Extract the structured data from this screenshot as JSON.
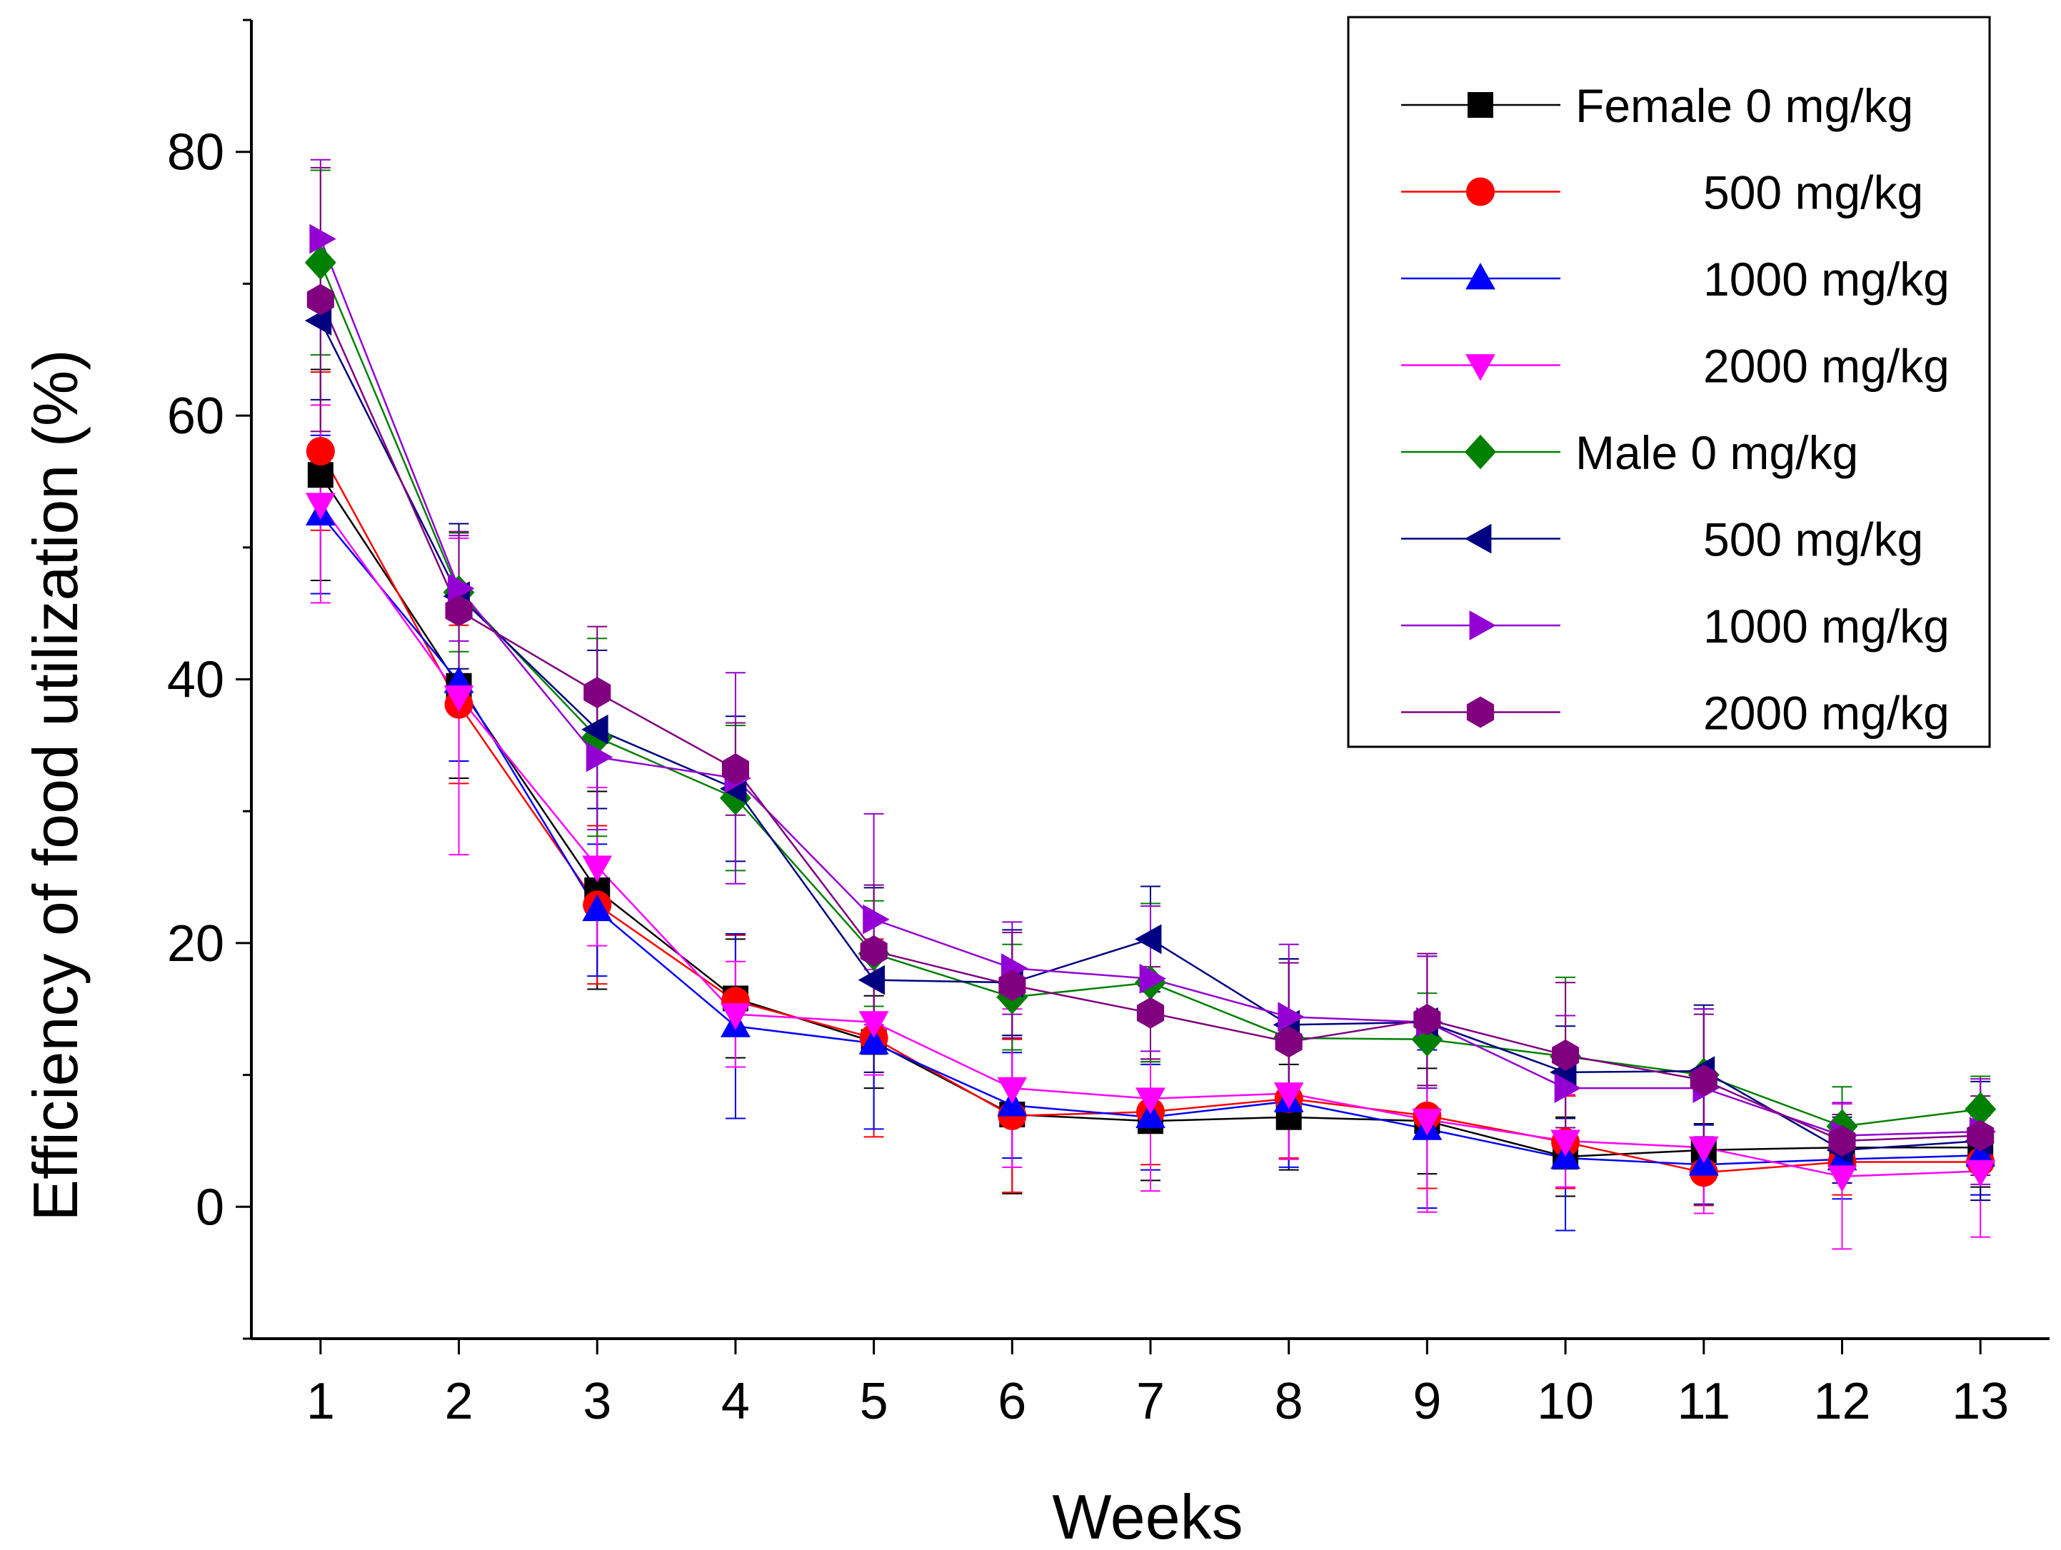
{
  "chart_data": {
    "type": "line",
    "title": "",
    "xlabel": "Weeks",
    "ylabel": "Efficiency of food utilization (%)",
    "x": [
      1,
      2,
      3,
      4,
      5,
      6,
      7,
      8,
      9,
      10,
      11,
      12,
      13
    ],
    "xlim": [
      0.5,
      13.5
    ],
    "ylim": [
      -10,
      90
    ],
    "yticks": [
      0,
      20,
      40,
      60,
      80
    ],
    "legend_position": "top-right",
    "series": [
      {
        "name": "Female 0 mg/kg",
        "legend_label": "Female 0 mg/kg",
        "color": "#000000",
        "marker": "square",
        "values": [
          55.5,
          39.5,
          24,
          15.8,
          12.5,
          7,
          6.5,
          6.8,
          6.5,
          3.8,
          4.3,
          4.5,
          4.5
        ],
        "errors": [
          8,
          7,
          7.5,
          4.5,
          3.5,
          6,
          4.5,
          4,
          4,
          3,
          2,
          2,
          3
        ]
      },
      {
        "name": "Female 500 mg/kg",
        "legend_label": "500 mg/kg",
        "color": "#ff0000",
        "marker": "circle",
        "values": [
          57.3,
          38.1,
          22.9,
          15.6,
          12.8,
          6.9,
          7.2,
          8.2,
          6.9,
          4.9,
          2.6,
          3.4,
          3.4
        ],
        "errors": [
          6,
          6,
          6,
          5,
          7.5,
          5.8,
          4,
          4.5,
          5.5,
          3.5,
          2.5,
          2.5,
          2.5
        ]
      },
      {
        "name": "Female 1000 mg/kg",
        "legend_label": "1000 mg/kg",
        "color": "#0000ff",
        "marker": "triangle-up",
        "values": [
          52.5,
          39.8,
          22.5,
          13.7,
          12.4,
          7.7,
          6.8,
          8,
          5.9,
          3.7,
          3.2,
          3.6,
          3.9
        ],
        "errors": [
          6,
          6,
          5,
          7,
          6.5,
          4,
          4,
          5,
          6,
          5.5,
          3,
          3,
          3
        ]
      },
      {
        "name": "Female 2000 mg/kg",
        "legend_label": "2000 mg/kg",
        "color": "#ff00ff",
        "marker": "triangle-down",
        "values": [
          53.3,
          38.7,
          25.8,
          14.6,
          14,
          9,
          8.2,
          8.6,
          6.6,
          5,
          4.5,
          2.3,
          2.7
        ],
        "errors": [
          7.5,
          12,
          6,
          4,
          4,
          6,
          7,
          5,
          7,
          3.5,
          5,
          5.5,
          5
        ]
      },
      {
        "name": "Male 0 mg/kg",
        "legend_label": "Male 0 mg/kg",
        "color": "#008000",
        "marker": "diamond",
        "values": [
          71.6,
          46.6,
          35.6,
          31,
          19.2,
          15.9,
          17,
          12.8,
          12.7,
          11.4,
          10,
          6.1,
          7.4
        ],
        "errors": [
          7,
          4.5,
          7.5,
          5.5,
          4,
          4,
          6,
          6,
          3.5,
          6,
          5,
          3,
          2.5
        ]
      },
      {
        "name": "Male 500 mg/kg",
        "legend_label": "500 mg/kg",
        "color": "#000080",
        "marker": "triangle-left",
        "values": [
          67.2,
          46.3,
          36.2,
          31.7,
          17.2,
          17,
          20.3,
          13.8,
          14,
          10.2,
          10.3,
          4.3,
          5
        ],
        "errors": [
          6,
          5.5,
          6,
          5.5,
          7,
          4,
          4,
          5,
          5,
          3.5,
          5,
          2.5,
          4.5
        ]
      },
      {
        "name": "Male 1000 mg/kg",
        "legend_label": "1000 mg/kg",
        "color": "#9400d3",
        "marker": "triangle-right",
        "values": [
          73.4,
          46.9,
          34.1,
          32.5,
          21.8,
          18.1,
          17.3,
          14.4,
          14,
          9,
          9,
          5.4,
          5.7
        ],
        "errors": [
          6,
          4,
          5.5,
          8,
          8,
          3.5,
          5.5,
          5.5,
          5,
          5.5,
          6,
          2.5,
          4
        ]
      },
      {
        "name": "Male 2000 mg/kg",
        "legend_label": "2000 mg/kg",
        "color": "#800080",
        "marker": "hexagon",
        "values": [
          68.8,
          45.2,
          39,
          33.2,
          19.4,
          16.8,
          14.7,
          12.5,
          14.2,
          11.5,
          9.6,
          5,
          5.4
        ],
        "errors": [
          10,
          6,
          5,
          3.5,
          5,
          4,
          3.5,
          6,
          5,
          5.5,
          5,
          2,
          3
        ]
      }
    ]
  }
}
